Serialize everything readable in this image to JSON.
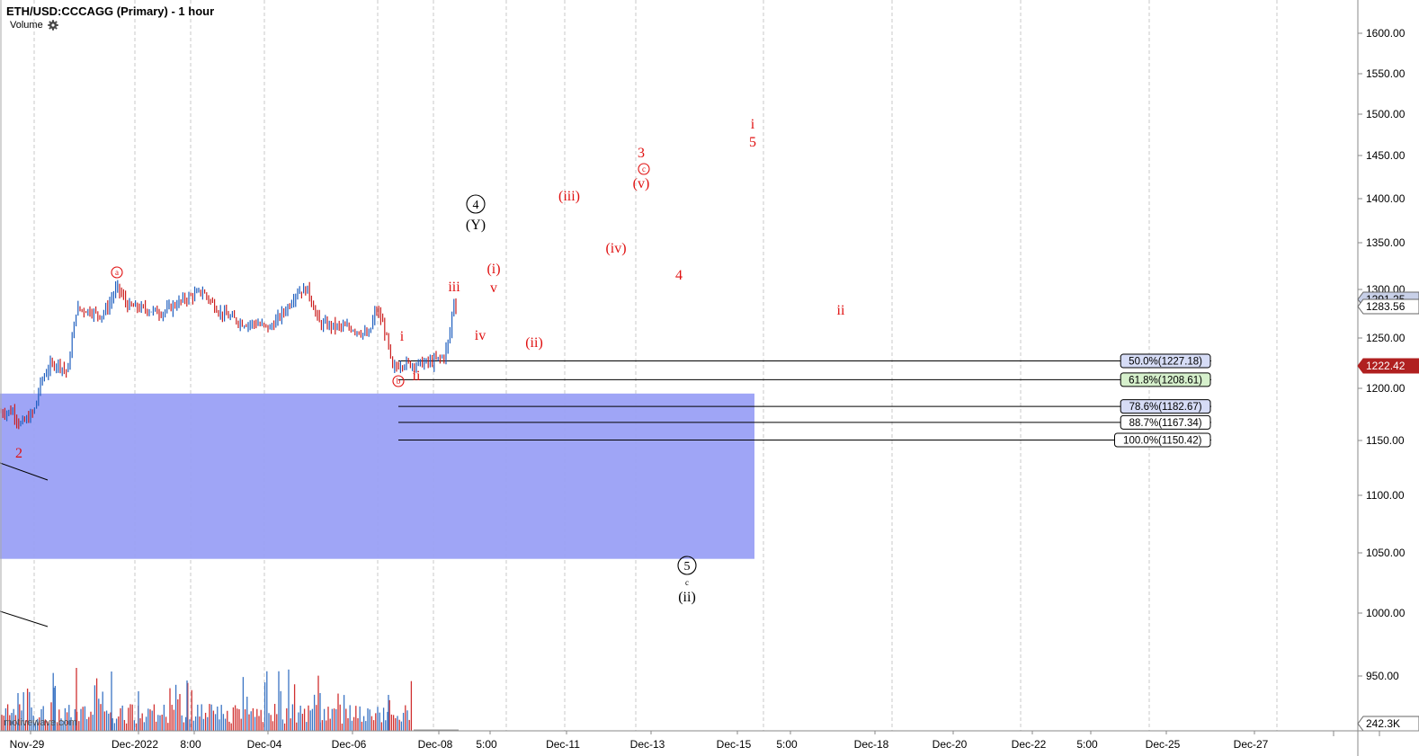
{
  "header": {
    "title": "ETH/USD:CCCAGG (Primary) - 1 hour",
    "volume_label": "Volume",
    "settings_icon": "gear-icon"
  },
  "watermark": "motivewave.com",
  "chart_data": {
    "type": "candlestick",
    "title": "ETH/USD:CCCAGG (Primary) - 1 hour",
    "ylim": [
      900,
      1650
    ],
    "y_ticks": [
      "1600.00",
      "1550.00",
      "1500.00",
      "1450.00",
      "1400.00",
      "1350.00",
      "1300.00",
      "1250.00",
      "1200.00",
      "1150.00",
      "1100.00",
      "1050.00",
      "1000.00",
      "950.00"
    ],
    "x_ticks": [
      "Nov-29",
      "Dec-2022",
      "8:00",
      "Dec-04",
      "Dec-06",
      "Dec-08",
      "5:00",
      "Dec-11",
      "Dec-13",
      "Dec-15",
      "5:00",
      "Dec-18",
      "Dec-20",
      "Dec-22",
      "5:00",
      "Dec-25",
      "Dec-27"
    ],
    "price_labels": [
      {
        "text": "1291.25",
        "value": 1291.25,
        "color": "#c8d0e8"
      },
      {
        "text": "1283.56",
        "value": 1283.56,
        "color": "#ffffff"
      },
      {
        "text": "1222.42",
        "value": 1222.42,
        "color": "#b02020"
      }
    ],
    "volume_label": "242.3K",
    "fib_levels": [
      {
        "text": "50.0%(1227.18)",
        "value": 1227.18,
        "color": "#d6dcf6"
      },
      {
        "text": "61.8%(1208.61)",
        "value": 1208.61,
        "color": "#d6f0cc"
      },
      {
        "text": "78.6%(1182.67)",
        "value": 1182.67,
        "color": "#d6dcf6"
      },
      {
        "text": "88.7%(1167.34)",
        "value": 1167.34,
        "color": "#ffffff"
      },
      {
        "text": "100.0%(1150.42)",
        "value": 1150.42,
        "color": "#ffffff"
      }
    ],
    "target_zone": {
      "from": 1045,
      "to": 1195,
      "color": "#9aa0f5"
    },
    "wave_labels": [
      {
        "text": "a",
        "circled": true,
        "small": true,
        "color": "red",
        "price": 1315,
        "time": "Dec-2022"
      },
      {
        "text": "b",
        "circled": true,
        "small": true,
        "color": "red",
        "price": 1200,
        "time": "Dec-07"
      },
      {
        "text": "c",
        "circled": true,
        "small": true,
        "color": "red",
        "price": 1430,
        "time": "Dec-13"
      },
      {
        "text": "2",
        "color": "red",
        "price": 1150
      },
      {
        "text": "i",
        "color": "red",
        "price": 1246
      },
      {
        "text": "ii",
        "color": "red",
        "price": 1213
      },
      {
        "text": "iii",
        "color": "red",
        "price": 1295
      },
      {
        "text": "iv",
        "color": "red",
        "price": 1247
      },
      {
        "text": "v",
        "color": "red",
        "price": 1295
      },
      {
        "text": "(i)",
        "color": "red",
        "price": 1318
      },
      {
        "text": "(ii)",
        "color": "red",
        "price": 1243
      },
      {
        "text": "(iii)",
        "color": "red",
        "price": 1400
      },
      {
        "text": "(iv)",
        "color": "red",
        "price": 1341
      },
      {
        "text": "(v)",
        "color": "red",
        "price": 1415
      },
      {
        "text": "3",
        "color": "red",
        "price": 1451
      },
      {
        "text": "4",
        "color": "red",
        "price": 1315
      },
      {
        "text": "i",
        "color": "red",
        "price": 1490
      },
      {
        "text": "5",
        "color": "red",
        "price": 1468
      },
      {
        "text": "ii",
        "color": "red",
        "price": 1267
      },
      {
        "text": "4",
        "color": "black",
        "circled": true,
        "price": 1393
      },
      {
        "text": "(Y)",
        "color": "black",
        "price": 1368
      },
      {
        "text": "5",
        "color": "black",
        "circled": true,
        "price": 1042
      },
      {
        "text": "c",
        "color": "black",
        "small": true,
        "price": 1025
      },
      {
        "text": "(ii)",
        "color": "black",
        "price": 1017
      }
    ]
  }
}
